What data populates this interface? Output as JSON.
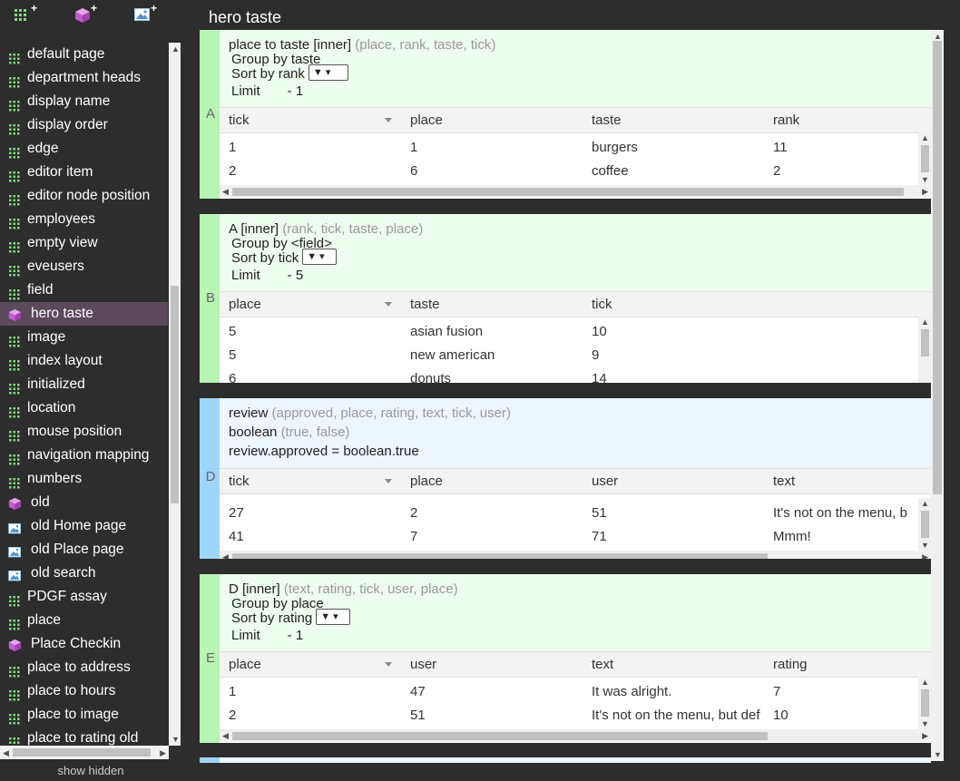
{
  "sidebar": {
    "items": [
      {
        "label": "default page",
        "icon": "grid-icon"
      },
      {
        "label": "department heads",
        "icon": "grid-icon"
      },
      {
        "label": "display name",
        "icon": "grid-icon"
      },
      {
        "label": "display order",
        "icon": "grid-icon"
      },
      {
        "label": "edge",
        "icon": "grid-icon"
      },
      {
        "label": "editor item",
        "icon": "grid-icon"
      },
      {
        "label": "editor node position",
        "icon": "grid-icon"
      },
      {
        "label": "employees",
        "icon": "grid-icon"
      },
      {
        "label": "empty view",
        "icon": "grid-icon"
      },
      {
        "label": "eveusers",
        "icon": "grid-icon"
      },
      {
        "label": "field",
        "icon": "grid-icon"
      },
      {
        "label": "hero taste",
        "icon": "cube-icon",
        "selected": true
      },
      {
        "label": "image",
        "icon": "grid-icon"
      },
      {
        "label": "index layout",
        "icon": "grid-icon"
      },
      {
        "label": "initialized",
        "icon": "grid-icon"
      },
      {
        "label": "location",
        "icon": "grid-icon"
      },
      {
        "label": "mouse position",
        "icon": "grid-icon"
      },
      {
        "label": "navigation mapping",
        "icon": "grid-icon"
      },
      {
        "label": "numbers",
        "icon": "grid-icon"
      },
      {
        "label": "old",
        "icon": "cube-icon"
      },
      {
        "label": "old Home page",
        "icon": "image-icon"
      },
      {
        "label": "old Place page",
        "icon": "image-icon"
      },
      {
        "label": "old search",
        "icon": "image-icon"
      },
      {
        "label": "PDGF assay",
        "icon": "grid-icon"
      },
      {
        "label": "place",
        "icon": "grid-icon"
      },
      {
        "label": "Place Checkin",
        "icon": "cube-icon"
      },
      {
        "label": "place to address",
        "icon": "grid-icon"
      },
      {
        "label": "place to hours",
        "icon": "grid-icon"
      },
      {
        "label": "place to image",
        "icon": "grid-icon"
      },
      {
        "label": "place to rating old",
        "icon": "grid-icon"
      }
    ],
    "show_hidden": "show hidden",
    "plus": "+"
  },
  "page": {
    "title": "hero taste"
  },
  "cards": {
    "A": {
      "letter": "A",
      "title": "place to taste [inner]",
      "fields": "(place, rank, taste, tick)",
      "group_label": "Group by",
      "group_value": "taste",
      "sort_label": "Sort by",
      "sort_value": "rank",
      "limit_label": "Limit",
      "limit_value": "- 1",
      "columns": [
        "tick",
        "place",
        "taste",
        "rank"
      ],
      "rows": [
        [
          "1",
          "1",
          "burgers",
          "11"
        ],
        [
          "2",
          "6",
          "coffee",
          "2"
        ]
      ]
    },
    "B": {
      "letter": "B",
      "title": "A [inner]",
      "fields": "(rank, tick, taste, place)",
      "group_label": "Group by",
      "group_value": "<field>",
      "sort_label": "Sort by",
      "sort_value": "tick",
      "limit_label": "Limit",
      "limit_value": "- 5",
      "columns": [
        "place",
        "taste",
        "tick"
      ],
      "rows": [
        [
          "5",
          "asian fusion",
          "10"
        ],
        [
          "5",
          "new american",
          "9"
        ],
        [
          "6",
          "donuts",
          "14"
        ]
      ]
    },
    "D": {
      "letter": "D",
      "title": "review",
      "fields": "(approved, place, rating, text, tick, user)",
      "line2_title": "boolean",
      "line2_fields": "(true, false)",
      "expression": "review.approved = boolean.true",
      "columns": [
        "tick",
        "place",
        "user",
        "text"
      ],
      "rows": [
        [
          "27",
          "2",
          "51",
          "It's not on the menu, b"
        ],
        [
          "41",
          "7",
          "71",
          "Mmm!"
        ]
      ]
    },
    "E": {
      "letter": "E",
      "title": "D [inner]",
      "fields": "(text, rating, tick, user, place)",
      "group_label": "Group by",
      "group_value": "place",
      "sort_label": "Sort by",
      "sort_value": "rating",
      "limit_label": "Limit",
      "limit_value": "- 1",
      "columns": [
        "place",
        "user",
        "text",
        "rating"
      ],
      "rows": [
        [
          "1",
          "47",
          "It was alright.",
          "7"
        ],
        [
          "2",
          "51",
          "It's not on the menu, but def",
          "10"
        ]
      ]
    }
  },
  "dropdown_glyph": "▼ ▾",
  "colors": {
    "green_band": "#b7f5b2",
    "green_bg": "#edfded",
    "blue_band": "#9ed5fb",
    "blue_bg": "#edf5fd",
    "selected": "#5b4a5b"
  }
}
